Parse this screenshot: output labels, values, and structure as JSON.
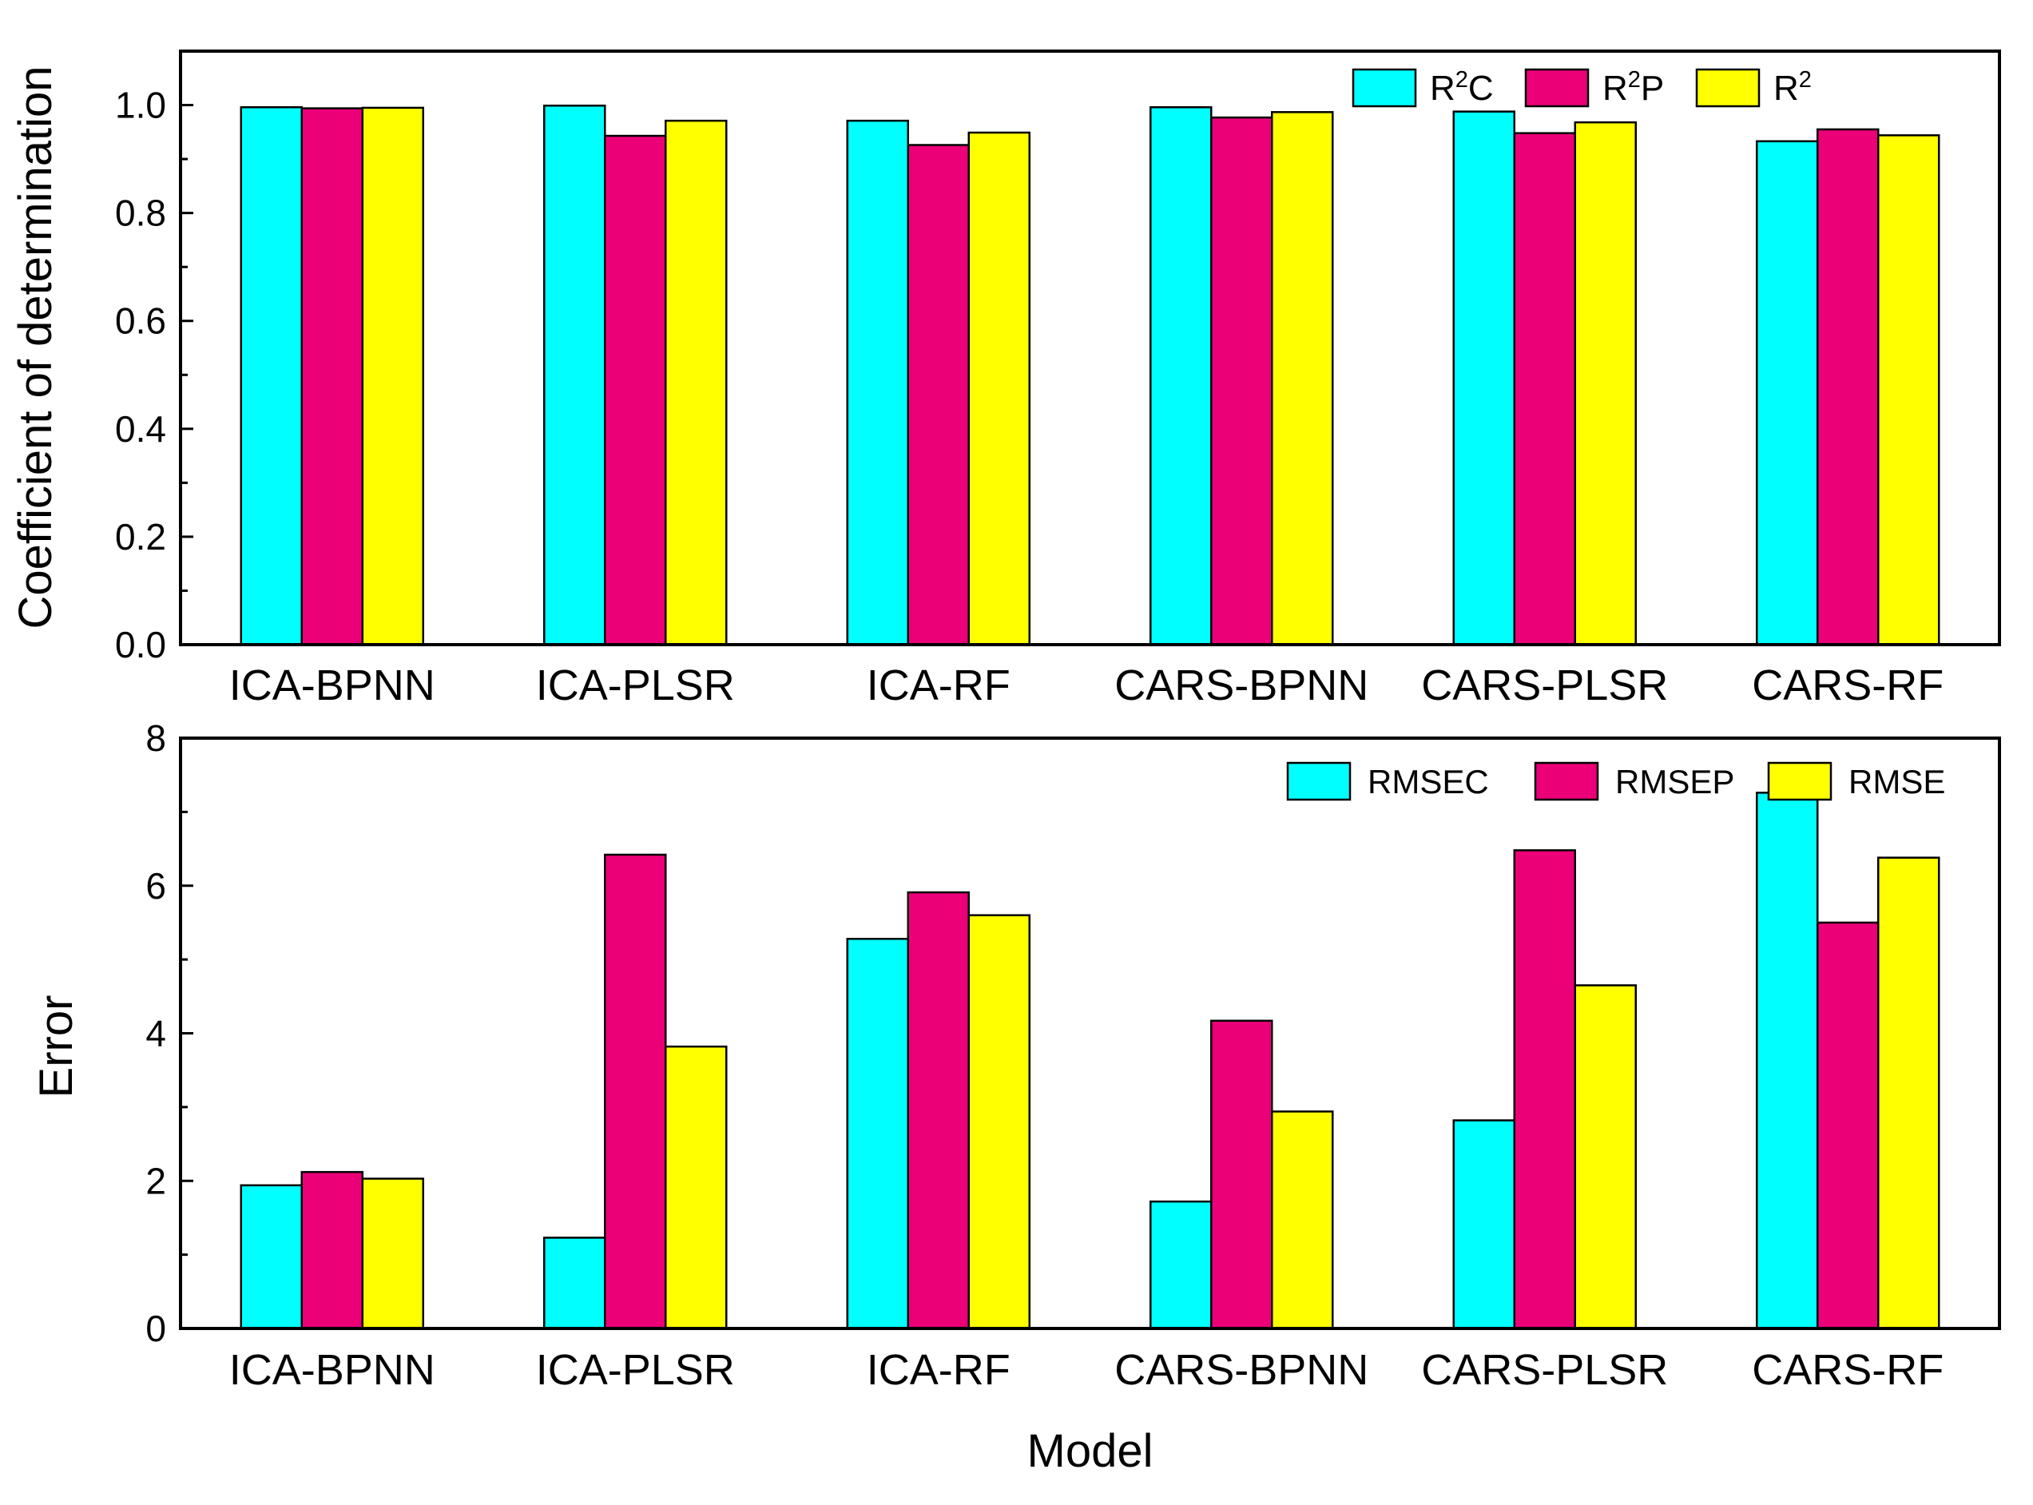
{
  "colors": {
    "cyan": "#00FFFF",
    "magenta": "#EC0078",
    "yellow": "#FFFF00",
    "stroke": "#000000"
  },
  "chart_data": [
    {
      "type": "bar",
      "title": "",
      "xlabel": "",
      "ylabel": "Coefficient of determination",
      "ylim": [
        0,
        1.1
      ],
      "yticks": [
        "0.0",
        "0.2",
        "0.4",
        "0.6",
        "0.8",
        "1.0"
      ],
      "legend_position": "top-right",
      "categories": [
        "ICA-BPNN",
        "ICA-PLSR",
        "ICA-RF",
        "CARS-BPNN",
        "CARS-PLSR",
        "CARS-RF"
      ],
      "series": [
        {
          "name": "R2C",
          "legend_base": "R",
          "legend_sup": "2",
          "legend_suffix": "C",
          "color": "#00FFFF",
          "values": [
            0.996,
            0.999,
            0.971,
            0.996,
            0.988,
            0.933
          ]
        },
        {
          "name": "R2P",
          "legend_base": "R",
          "legend_sup": "2",
          "legend_suffix": "P",
          "color": "#EC0078",
          "values": [
            0.994,
            0.943,
            0.926,
            0.977,
            0.948,
            0.955
          ]
        },
        {
          "name": "R2",
          "legend_base": "R",
          "legend_sup": "2",
          "legend_suffix": "",
          "color": "#FFFF00",
          "values": [
            0.995,
            0.971,
            0.949,
            0.987,
            0.968,
            0.944
          ]
        }
      ]
    },
    {
      "type": "bar",
      "title": "",
      "xlabel": "Model",
      "ylabel": "Error",
      "ylim": [
        0,
        8
      ],
      "yticks": [
        "0",
        "2",
        "4",
        "6",
        "8"
      ],
      "legend_position": "top-right",
      "categories": [
        "ICA-BPNN",
        "ICA-PLSR",
        "ICA-RF",
        "CARS-BPNN",
        "CARS-PLSR",
        "CARS-RF"
      ],
      "series": [
        {
          "name": "RMSEC",
          "legend_base": "RMSEC",
          "legend_sup": "",
          "legend_suffix": "",
          "color": "#00FFFF",
          "values": [
            1.94,
            1.23,
            5.28,
            1.72,
            2.82,
            7.26
          ]
        },
        {
          "name": "RMSEP",
          "legend_base": "RMSEP",
          "legend_sup": "",
          "legend_suffix": "",
          "color": "#EC0078",
          "values": [
            2.12,
            6.42,
            5.91,
            4.17,
            6.48,
            5.5
          ]
        },
        {
          "name": "RMSE",
          "legend_base": "RMSE",
          "legend_sup": "",
          "legend_suffix": "",
          "color": "#FFFF00",
          "values": [
            2.03,
            3.82,
            5.6,
            2.94,
            4.65,
            6.38
          ]
        }
      ]
    }
  ]
}
